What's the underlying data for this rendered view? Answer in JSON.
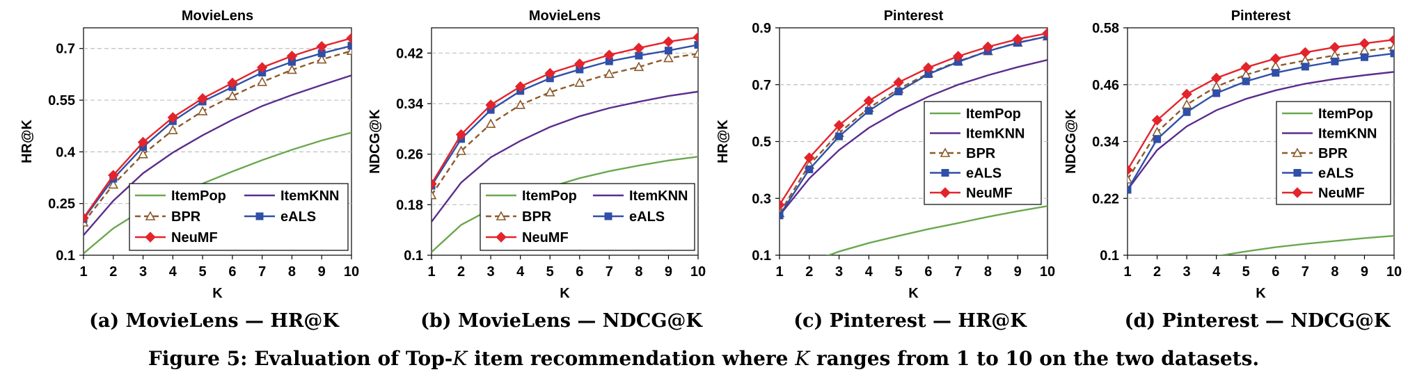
{
  "styles": {
    "ItemPop": {
      "color": "#6aa84f",
      "marker": "none",
      "dash": ""
    },
    "ItemKNN": {
      "color": "#5b2c8e",
      "marker": "none",
      "dash": ""
    },
    "BPR": {
      "color": "#8b5a2b",
      "marker": "triangle",
      "dash": "8,5"
    },
    "eALS": {
      "color": "#2f4fa8",
      "marker": "square",
      "dash": ""
    },
    "NeuMF": {
      "color": "#e3242b",
      "marker": "diamond",
      "dash": ""
    }
  },
  "caption": {
    "prefix": "Figure 5: Evaluation of Top-",
    "k1": "K",
    "middle": " item recommendation where ",
    "k2": "K",
    "suffix": " ranges from 1 to 10 on the two datasets."
  },
  "chart_data": [
    {
      "type": "line",
      "title": "MovieLens",
      "subtitle": "(a) MovieLens — HR@K",
      "xlabel": "K",
      "ylabel": "HR@K",
      "x": [
        1,
        2,
        3,
        4,
        5,
        6,
        7,
        8,
        9,
        10
      ],
      "xlim": [
        1,
        10
      ],
      "ylim": [
        0.1,
        0.76
      ],
      "yticks": [
        0.1,
        0.25,
        0.4,
        0.55,
        0.7
      ],
      "ytick_labels": [
        "0.1",
        "0.25",
        "0.4",
        "0.55",
        "0.7"
      ],
      "grid": true,
      "legend": {
        "position": "bottom-right",
        "columns": 2
      },
      "series": [
        {
          "name": "ItemPop",
          "values": [
            0.105,
            0.178,
            0.232,
            0.271,
            0.308,
            0.343,
            0.376,
            0.406,
            0.433,
            0.456
          ]
        },
        {
          "name": "ItemKNN",
          "values": [
            0.158,
            0.258,
            0.338,
            0.398,
            0.448,
            0.493,
            0.533,
            0.565,
            0.594,
            0.622
          ]
        },
        {
          "name": "BPR",
          "values": [
            0.195,
            0.305,
            0.393,
            0.463,
            0.518,
            0.562,
            0.603,
            0.638,
            0.668,
            0.693
          ]
        },
        {
          "name": "eALS",
          "values": [
            0.205,
            0.322,
            0.414,
            0.489,
            0.546,
            0.588,
            0.63,
            0.661,
            0.686,
            0.708
          ]
        },
        {
          "name": "NeuMF",
          "values": [
            0.208,
            0.332,
            0.428,
            0.5,
            0.555,
            0.6,
            0.645,
            0.678,
            0.706,
            0.73
          ]
        }
      ]
    },
    {
      "type": "line",
      "title": "MovieLens",
      "subtitle": "(b) MovieLens — NDCG@K",
      "xlabel": "K",
      "ylabel": "NDCG@K",
      "x": [
        1,
        2,
        3,
        4,
        5,
        6,
        7,
        8,
        9,
        10
      ],
      "xlim": [
        1,
        10
      ],
      "ylim": [
        0.1,
        0.46
      ],
      "yticks": [
        0.1,
        0.18,
        0.26,
        0.34,
        0.42
      ],
      "ytick_labels": [
        "0.1",
        "0.18",
        "0.26",
        "0.34",
        "0.42"
      ],
      "grid": true,
      "legend": {
        "position": "bottom-right",
        "columns": 2
      },
      "series": [
        {
          "name": "ItemPop",
          "values": [
            0.105,
            0.148,
            0.173,
            0.192,
            0.208,
            0.222,
            0.233,
            0.242,
            0.25,
            0.256
          ]
        },
        {
          "name": "ItemKNN",
          "values": [
            0.153,
            0.215,
            0.255,
            0.281,
            0.303,
            0.32,
            0.333,
            0.343,
            0.352,
            0.359
          ]
        },
        {
          "name": "BPR",
          "values": [
            0.195,
            0.265,
            0.308,
            0.338,
            0.358,
            0.373,
            0.387,
            0.398,
            0.412,
            0.419
          ]
        },
        {
          "name": "eALS",
          "values": [
            0.21,
            0.284,
            0.33,
            0.36,
            0.38,
            0.394,
            0.407,
            0.416,
            0.424,
            0.433
          ]
        },
        {
          "name": "NeuMF",
          "values": [
            0.213,
            0.291,
            0.338,
            0.367,
            0.388,
            0.403,
            0.417,
            0.428,
            0.438,
            0.445
          ]
        }
      ]
    },
    {
      "type": "line",
      "title": "Pinterest",
      "subtitle": "(c) Pinterest — HR@K",
      "xlabel": "K",
      "ylabel": "HR@K",
      "x": [
        1,
        2,
        3,
        4,
        5,
        6,
        7,
        8,
        9,
        10
      ],
      "xlim": [
        1,
        10
      ],
      "ylim": [
        0.1,
        0.9
      ],
      "yticks": [
        0.1,
        0.3,
        0.5,
        0.7,
        0.9
      ],
      "ytick_labels": [
        "0.1",
        "0.3",
        "0.5",
        "0.7",
        "0.9"
      ],
      "grid": true,
      "legend": {
        "position": "right",
        "columns": 1
      },
      "series": [
        {
          "name": "ItemPop",
          "values": [
            0.04,
            0.075,
            0.113,
            0.143,
            0.168,
            0.192,
            0.213,
            0.235,
            0.255,
            0.273
          ]
        },
        {
          "name": "ItemKNN",
          "values": [
            0.24,
            0.37,
            0.47,
            0.548,
            0.608,
            0.658,
            0.7,
            0.733,
            0.762,
            0.787
          ]
        },
        {
          "name": "BPR",
          "values": [
            0.248,
            0.418,
            0.53,
            0.618,
            0.685,
            0.74,
            0.782,
            0.818,
            0.848,
            0.87
          ]
        },
        {
          "name": "eALS",
          "values": [
            0.24,
            0.402,
            0.518,
            0.608,
            0.676,
            0.737,
            0.78,
            0.818,
            0.847,
            0.87
          ]
        },
        {
          "name": "NeuMF",
          "values": [
            0.277,
            0.443,
            0.557,
            0.643,
            0.708,
            0.759,
            0.8,
            0.833,
            0.86,
            0.881
          ]
        }
      ]
    },
    {
      "type": "line",
      "title": "Pinterest",
      "subtitle": "(d) Pinterest — NDCG@K",
      "xlabel": "K",
      "ylabel": "NDCG@K",
      "x": [
        1,
        2,
        3,
        4,
        5,
        6,
        7,
        8,
        9,
        10
      ],
      "xlim": [
        1,
        10
      ],
      "ylim": [
        0.1,
        0.58
      ],
      "yticks": [
        0.1,
        0.22,
        0.34,
        0.46,
        0.58
      ],
      "ytick_labels": [
        "0.1",
        "0.22",
        "0.34",
        "0.46",
        "0.58"
      ],
      "grid": true,
      "legend": {
        "position": "right",
        "columns": 1
      },
      "series": [
        {
          "name": "ItemPop",
          "values": [
            0.05,
            0.07,
            0.085,
            0.098,
            0.108,
            0.117,
            0.124,
            0.13,
            0.136,
            0.141
          ]
        },
        {
          "name": "ItemKNN",
          "values": [
            0.238,
            0.322,
            0.372,
            0.406,
            0.43,
            0.448,
            0.462,
            0.472,
            0.48,
            0.487
          ]
        },
        {
          "name": "BPR",
          "values": [
            0.26,
            0.36,
            0.418,
            0.456,
            0.481,
            0.499,
            0.511,
            0.522,
            0.531,
            0.539
          ]
        },
        {
          "name": "eALS",
          "values": [
            0.238,
            0.345,
            0.402,
            0.442,
            0.467,
            0.485,
            0.498,
            0.509,
            0.518,
            0.526
          ]
        },
        {
          "name": "NeuMF",
          "values": [
            0.28,
            0.385,
            0.44,
            0.474,
            0.497,
            0.515,
            0.528,
            0.539,
            0.547,
            0.555
          ]
        }
      ]
    }
  ]
}
